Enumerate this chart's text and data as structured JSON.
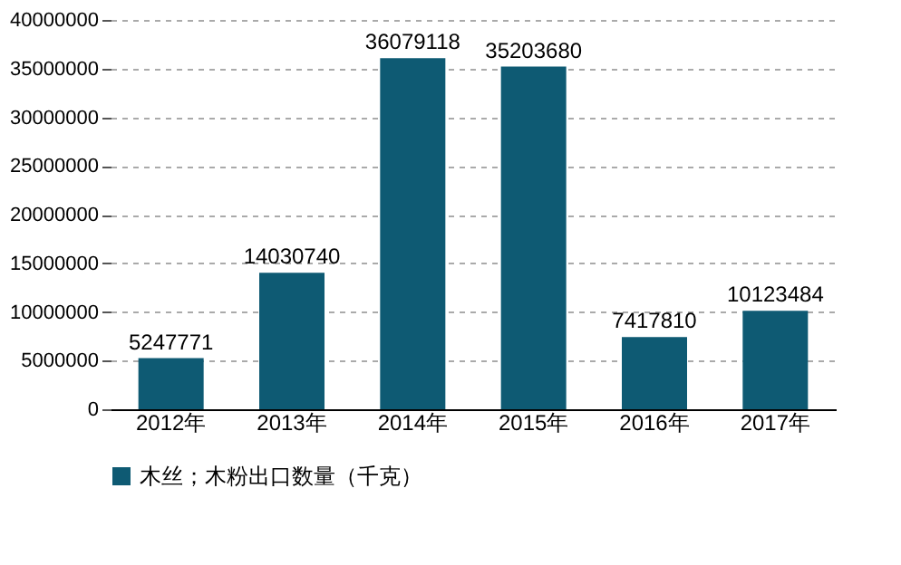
{
  "chart_data": {
    "type": "bar",
    "categories": [
      "2012年",
      "2013年",
      "2014年",
      "2015年",
      "2016年",
      "2017年"
    ],
    "series": [
      {
        "name": "木丝；木粉出口数量（千克）",
        "color": "#0e5a73",
        "values": [
          5247771,
          14030740,
          36079118,
          35203680,
          7417810,
          10123484
        ]
      }
    ],
    "ylim": [
      0,
      40000000
    ],
    "yticks": [
      0,
      5000000,
      10000000,
      15000000,
      20000000,
      25000000,
      30000000,
      35000000,
      40000000
    ],
    "grid": "y",
    "legend": "bottom",
    "data_labels": true
  }
}
